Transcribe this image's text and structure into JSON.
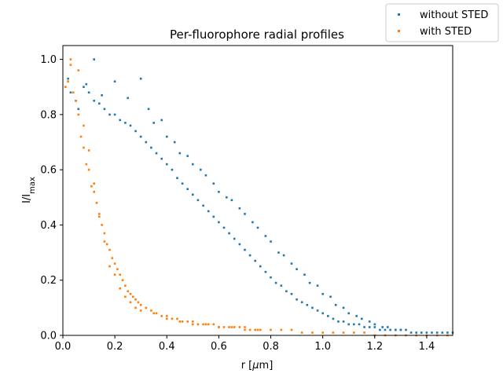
{
  "chart_data": {
    "type": "scatter",
    "title": "Per-fluorophore radial profiles",
    "xlabel": "r [μm]",
    "ylabel": "I/I_max",
    "xlim": [
      0,
      1.5
    ],
    "ylim": [
      0,
      1.05
    ],
    "xticks": [
      "0.0",
      "0.2",
      "0.4",
      "0.6",
      "0.8",
      "1.0",
      "1.2",
      "1.4"
    ],
    "xtick_values": [
      0.0,
      0.2,
      0.4,
      0.6,
      0.8,
      1.0,
      1.2,
      1.4
    ],
    "yticks": [
      "0.0",
      "0.2",
      "0.4",
      "0.6",
      "0.8",
      "1.0"
    ],
    "ytick_values": [
      0.0,
      0.2,
      0.4,
      0.6,
      0.8,
      1.0
    ],
    "grid": false,
    "legend_position": "outside-top-right",
    "series": [
      {
        "name": "without STED",
        "color": "#1f77b4",
        "x": [
          0.02,
          0.03,
          0.05,
          0.06,
          0.08,
          0.1,
          0.12,
          0.14,
          0.16,
          0.18,
          0.2,
          0.22,
          0.24,
          0.26,
          0.28,
          0.3,
          0.32,
          0.34,
          0.36,
          0.38,
          0.4,
          0.42,
          0.44,
          0.46,
          0.48,
          0.5,
          0.52,
          0.54,
          0.56,
          0.58,
          0.6,
          0.62,
          0.64,
          0.66,
          0.68,
          0.7,
          0.72,
          0.74,
          0.76,
          0.78,
          0.8,
          0.82,
          0.84,
          0.86,
          0.88,
          0.9,
          0.92,
          0.94,
          0.96,
          0.98,
          1.0,
          1.02,
          1.04,
          1.06,
          1.08,
          1.1,
          1.12,
          1.14,
          1.16,
          1.18,
          1.2,
          1.22,
          1.24,
          1.26,
          1.28,
          1.3,
          1.32,
          1.34,
          1.36,
          1.38,
          1.4,
          1.42,
          1.44,
          1.46,
          1.48,
          1.5,
          0.12,
          0.09,
          0.15,
          0.2,
          0.25,
          0.3,
          0.35,
          0.4,
          0.45,
          0.5,
          0.55,
          0.6,
          0.65,
          0.7,
          0.75,
          0.8,
          0.85,
          0.9,
          0.95,
          1.0,
          1.05,
          1.1,
          1.15,
          1.2,
          1.25,
          1.3,
          0.33,
          0.38,
          0.43,
          0.48,
          0.53,
          0.58,
          0.63,
          0.68,
          0.73,
          0.78,
          0.83,
          0.88,
          0.93,
          0.98,
          1.03,
          1.08,
          1.13,
          1.18,
          1.23,
          1.28
        ],
        "y": [
          0.93,
          0.88,
          0.85,
          0.82,
          0.9,
          0.88,
          0.85,
          0.84,
          0.82,
          0.8,
          0.8,
          0.78,
          0.77,
          0.76,
          0.74,
          0.72,
          0.7,
          0.68,
          0.66,
          0.64,
          0.62,
          0.6,
          0.57,
          0.55,
          0.53,
          0.51,
          0.49,
          0.47,
          0.45,
          0.43,
          0.41,
          0.39,
          0.37,
          0.35,
          0.33,
          0.31,
          0.29,
          0.27,
          0.25,
          0.23,
          0.21,
          0.19,
          0.18,
          0.16,
          0.15,
          0.13,
          0.12,
          0.11,
          0.1,
          0.09,
          0.08,
          0.07,
          0.06,
          0.05,
          0.05,
          0.04,
          0.04,
          0.04,
          0.03,
          0.03,
          0.03,
          0.02,
          0.02,
          0.02,
          0.02,
          0.02,
          0.02,
          0.01,
          0.01,
          0.01,
          0.01,
          0.01,
          0.01,
          0.01,
          0.01,
          0.01,
          1.0,
          0.91,
          0.87,
          0.92,
          0.86,
          0.93,
          0.77,
          0.72,
          0.66,
          0.62,
          0.58,
          0.52,
          0.49,
          0.44,
          0.39,
          0.34,
          0.29,
          0.24,
          0.19,
          0.15,
          0.11,
          0.08,
          0.06,
          0.04,
          0.03,
          0.02,
          0.82,
          0.78,
          0.7,
          0.65,
          0.6,
          0.55,
          0.5,
          0.46,
          0.41,
          0.36,
          0.3,
          0.26,
          0.22,
          0.18,
          0.14,
          0.1,
          0.07,
          0.05,
          0.03,
          0.02
        ]
      },
      {
        "name": "with STED",
        "color": "#ff7f0e",
        "x": [
          0.01,
          0.02,
          0.03,
          0.04,
          0.05,
          0.06,
          0.07,
          0.08,
          0.09,
          0.1,
          0.11,
          0.12,
          0.13,
          0.14,
          0.15,
          0.16,
          0.17,
          0.18,
          0.19,
          0.2,
          0.21,
          0.22,
          0.23,
          0.24,
          0.25,
          0.26,
          0.27,
          0.28,
          0.29,
          0.3,
          0.32,
          0.34,
          0.36,
          0.38,
          0.4,
          0.42,
          0.44,
          0.46,
          0.48,
          0.5,
          0.52,
          0.54,
          0.56,
          0.58,
          0.6,
          0.62,
          0.64,
          0.66,
          0.68,
          0.7,
          0.72,
          0.74,
          0.76,
          0.8,
          0.84,
          0.88,
          0.92,
          0.96,
          1.0,
          1.04,
          1.08,
          1.12,
          1.16,
          1.2,
          1.24,
          1.28,
          1.32,
          1.36,
          1.4,
          1.44,
          1.48,
          0.03,
          0.06,
          0.08,
          0.1,
          0.12,
          0.14,
          0.16,
          0.18,
          0.2,
          0.22,
          0.24,
          0.26,
          0.28,
          0.3,
          0.35,
          0.4,
          0.45,
          0.5,
          0.55,
          0.6,
          0.65,
          0.7,
          0.75
        ],
        "y": [
          0.9,
          0.92,
          1.0,
          0.88,
          0.85,
          0.8,
          0.72,
          0.68,
          0.62,
          0.6,
          0.54,
          0.52,
          0.48,
          0.44,
          0.4,
          0.37,
          0.33,
          0.31,
          0.28,
          0.26,
          0.24,
          0.22,
          0.2,
          0.18,
          0.16,
          0.15,
          0.14,
          0.13,
          0.12,
          0.11,
          0.1,
          0.09,
          0.08,
          0.07,
          0.07,
          0.06,
          0.06,
          0.05,
          0.05,
          0.05,
          0.04,
          0.04,
          0.04,
          0.04,
          0.03,
          0.03,
          0.03,
          0.03,
          0.03,
          0.03,
          0.02,
          0.02,
          0.02,
          0.02,
          0.02,
          0.02,
          0.01,
          0.01,
          0.01,
          0.01,
          0.01,
          0.01,
          0.01,
          0.0,
          0.0,
          0.0,
          0.0,
          0.0,
          0.0,
          0.0,
          0.0,
          0.98,
          0.96,
          0.76,
          0.67,
          0.55,
          0.43,
          0.34,
          0.25,
          0.22,
          0.17,
          0.14,
          0.12,
          0.1,
          0.09,
          0.08,
          0.06,
          0.05,
          0.04,
          0.04,
          0.03,
          0.03,
          0.02,
          0.02
        ]
      }
    ]
  }
}
